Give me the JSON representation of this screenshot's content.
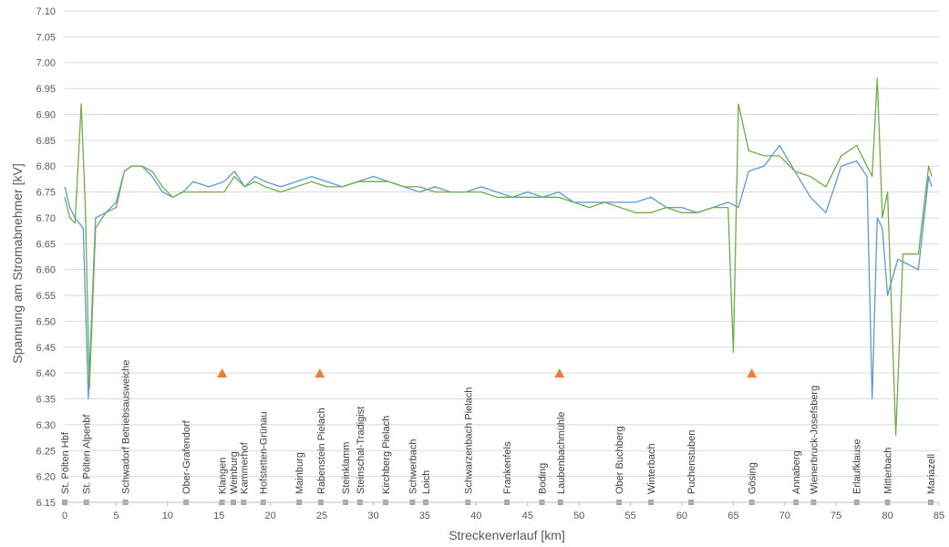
{
  "chart_data": {
    "type": "line",
    "xlabel": "Streckenverlauf [km]",
    "ylabel": "Spannung am Stromabnehmer [kV]",
    "xlim": [
      0,
      85
    ],
    "ylim": [
      6.15,
      7.1
    ],
    "x_ticks": [
      0,
      5,
      10,
      15,
      20,
      25,
      30,
      35,
      40,
      45,
      50,
      55,
      60,
      65,
      70,
      75,
      80,
      85
    ],
    "y_ticks": [
      "6.15",
      "6.20",
      "6.25",
      "6.30",
      "6.35",
      "6.40",
      "6.45",
      "6.50",
      "6.55",
      "6.60",
      "6.65",
      "6.70",
      "6.75",
      "6.80",
      "6.85",
      "6.90",
      "6.95",
      "7.00",
      "7.05",
      "7.10"
    ],
    "grid": "horizontal",
    "legend": "none",
    "colors": {
      "series_blue": "#5b9bd5",
      "series_green": "#70ad47",
      "marker": "#ed7d31",
      "station": "#a6a6a6"
    },
    "series": [
      {
        "color": "#5b9bd5",
        "x": [
          0,
          0.5,
          1,
          1.8,
          2.3,
          3,
          4,
          5,
          5.8,
          6.5,
          7.5,
          8.5,
          9.5,
          10.5,
          11.5,
          12.5,
          14,
          15.5,
          16.5,
          17.5,
          18.5,
          19.5,
          21,
          22.5,
          24,
          25.5,
          27,
          28.5,
          30,
          31.5,
          33,
          34.5,
          36,
          37.5,
          39,
          40.5,
          42,
          43.5,
          45,
          46.5,
          48,
          49.5,
          51,
          52.5,
          54,
          55.5,
          57,
          58.5,
          60,
          61.5,
          63,
          64.5,
          65.5,
          66.5,
          68,
          69.5,
          71,
          72.5,
          74,
          75.5,
          77,
          78,
          78.5,
          79,
          79.5,
          80,
          81,
          82,
          83,
          84,
          84.3
        ],
        "y": [
          6.76,
          6.72,
          6.7,
          6.68,
          6.35,
          6.7,
          6.71,
          6.73,
          6.79,
          6.8,
          6.8,
          6.78,
          6.75,
          6.74,
          6.75,
          6.77,
          6.76,
          6.77,
          6.79,
          6.76,
          6.78,
          6.77,
          6.76,
          6.77,
          6.78,
          6.77,
          6.76,
          6.77,
          6.78,
          6.77,
          6.76,
          6.75,
          6.76,
          6.75,
          6.75,
          6.76,
          6.75,
          6.74,
          6.75,
          6.74,
          6.75,
          6.73,
          6.73,
          6.73,
          6.73,
          6.73,
          6.74,
          6.72,
          6.72,
          6.71,
          6.72,
          6.73,
          6.72,
          6.79,
          6.8,
          6.84,
          6.79,
          6.74,
          6.71,
          6.8,
          6.81,
          6.78,
          6.35,
          6.7,
          6.68,
          6.55,
          6.62,
          6.61,
          6.6,
          6.78,
          6.76
        ]
      },
      {
        "color": "#70ad47",
        "x": [
          0,
          0.5,
          1,
          1.6,
          2,
          2.4,
          3,
          4,
          5,
          5.8,
          6.5,
          7.5,
          8.5,
          9.5,
          10.5,
          11.5,
          12.5,
          14,
          15.5,
          16.5,
          17.5,
          18.5,
          19.5,
          21,
          22.5,
          24,
          25.5,
          27,
          28.5,
          30,
          31.5,
          33,
          34.5,
          36,
          37.5,
          39,
          40.5,
          42,
          43.5,
          45,
          46.5,
          48,
          49.5,
          51,
          52.5,
          54,
          55.5,
          57,
          58.5,
          60,
          61.5,
          63,
          64.5,
          65,
          65.5,
          66.5,
          68,
          69.5,
          71,
          72.5,
          74,
          75.5,
          77,
          78,
          78.5,
          79,
          79.5,
          80,
          80.8,
          81.5,
          83,
          84,
          84.3
        ],
        "y": [
          6.74,
          6.7,
          6.69,
          6.92,
          6.72,
          6.37,
          6.68,
          6.71,
          6.72,
          6.79,
          6.8,
          6.8,
          6.79,
          6.76,
          6.74,
          6.75,
          6.75,
          6.75,
          6.75,
          6.78,
          6.76,
          6.77,
          6.76,
          6.75,
          6.76,
          6.77,
          6.76,
          6.76,
          6.77,
          6.77,
          6.77,
          6.76,
          6.76,
          6.75,
          6.75,
          6.75,
          6.75,
          6.74,
          6.74,
          6.74,
          6.74,
          6.74,
          6.73,
          6.72,
          6.73,
          6.72,
          6.71,
          6.71,
          6.72,
          6.71,
          6.71,
          6.72,
          6.72,
          6.44,
          6.92,
          6.83,
          6.82,
          6.82,
          6.79,
          6.78,
          6.76,
          6.82,
          6.84,
          6.8,
          6.78,
          6.97,
          6.7,
          6.75,
          6.28,
          6.63,
          6.63,
          6.8,
          6.78
        ]
      }
    ],
    "markers": [
      {
        "x": 15.3,
        "y": 6.4
      },
      {
        "x": 24.8,
        "y": 6.4
      },
      {
        "x": 48.1,
        "y": 6.4
      },
      {
        "x": 66.8,
        "y": 6.4
      }
    ],
    "stations": [
      {
        "name": "St. Pölten Hbf",
        "x": 0
      },
      {
        "name": "St. Pölten Alpenbf",
        "x": 2.1
      },
      {
        "name": "Schwadorf Betriebsausweiche",
        "x": 5.9
      },
      {
        "name": "Ober-Grafendorf",
        "x": 11.8
      },
      {
        "name": "Klangen",
        "x": 15.3
      },
      {
        "name": "Weinburg",
        "x": 16.4
      },
      {
        "name": "Kammerhof",
        "x": 17.4
      },
      {
        "name": "Hofstetten-Grünau",
        "x": 19.3
      },
      {
        "name": "Mainburg",
        "x": 22.8
      },
      {
        "name": "Rabenstein Pielach",
        "x": 24.9
      },
      {
        "name": "Steinklamm",
        "x": 27.3
      },
      {
        "name": "Steinschal-Tradigist",
        "x": 28.7
      },
      {
        "name": "Kirchberg Pielach",
        "x": 31.2
      },
      {
        "name": "Schwerbach",
        "x": 33.8
      },
      {
        "name": "Loich",
        "x": 35.1
      },
      {
        "name": "Schwarzenbach Pielach",
        "x": 39.2
      },
      {
        "name": "Frankenfels",
        "x": 43
      },
      {
        "name": "Boding",
        "x": 46.4
      },
      {
        "name": "Laubenbachmühle",
        "x": 48.2
      },
      {
        "name": "Ober Buchberg",
        "x": 53.9
      },
      {
        "name": "Winterbach",
        "x": 57
      },
      {
        "name": "Puchenstuben",
        "x": 60.9
      },
      {
        "name": "Gösing",
        "x": 66.8
      },
      {
        "name": "Annaberg",
        "x": 71.1
      },
      {
        "name": "Wienerbruck-Josefsberg",
        "x": 72.8
      },
      {
        "name": "Erlaufklause",
        "x": 77
      },
      {
        "name": "Mitterbach",
        "x": 80
      },
      {
        "name": "Mariazell",
        "x": 84.2
      }
    ]
  }
}
